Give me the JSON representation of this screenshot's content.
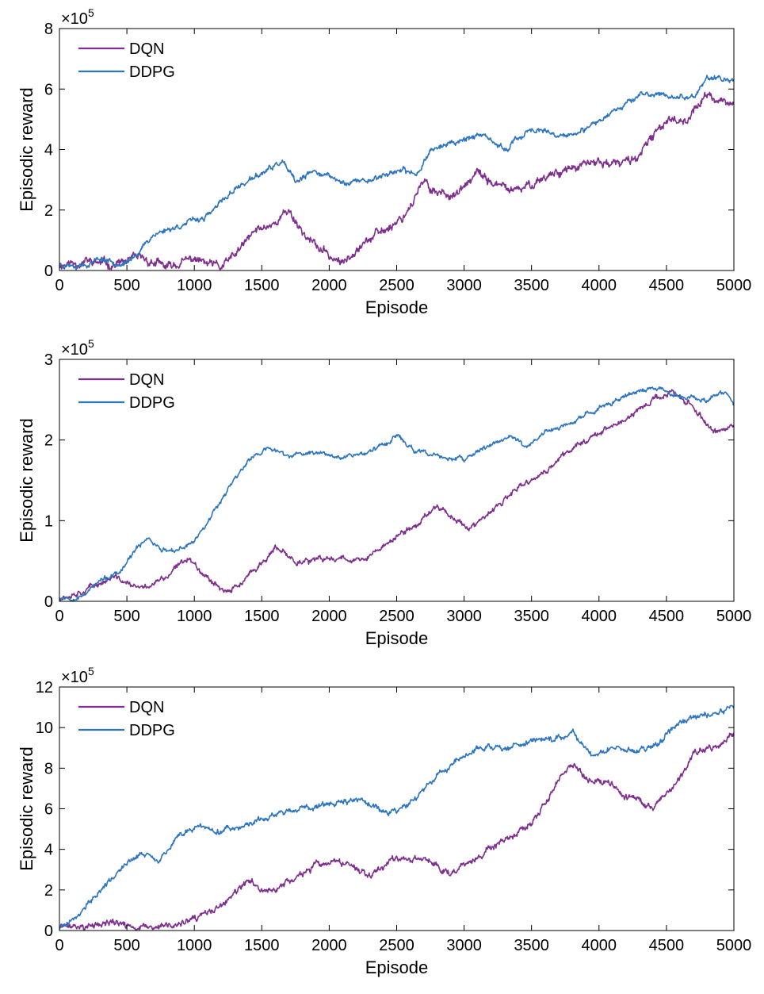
{
  "figure": {
    "colors": {
      "dqn": "#7E2F8E",
      "ddpg": "#2E75C0",
      "axis": "#000000",
      "background": "#ffffff"
    }
  },
  "chart_data": [
    {
      "type": "line",
      "xlabel": "Episode",
      "ylabel": "Episodic reward",
      "multiplier": {
        "base": "×10",
        "exponent": "5"
      },
      "xlim": [
        0,
        5000
      ],
      "ylim": [
        0,
        8
      ],
      "xticks": [
        0,
        500,
        1000,
        1500,
        2000,
        2500,
        3000,
        3500,
        4000,
        4500,
        5000
      ],
      "yticks": [
        0,
        2,
        4,
        6,
        8
      ],
      "legend": {
        "position": "top-left",
        "entries": [
          "DQN",
          "DDPG"
        ]
      },
      "series": [
        {
          "name": "DQN",
          "color": "#7E2F8E",
          "seed": 11,
          "noise": 0.14,
          "x": [
            0,
            200,
            400,
            600,
            800,
            1000,
            1100,
            1200,
            1300,
            1450,
            1600,
            1700,
            1800,
            1900,
            2000,
            2100,
            2200,
            2400,
            2550,
            2700,
            2800,
            2950,
            3100,
            3250,
            3400,
            3550,
            3700,
            3850,
            4000,
            4150,
            4300,
            4500,
            4650,
            4800,
            4900,
            5000
          ],
          "y": [
            0.2,
            0.3,
            0.2,
            0.4,
            0.1,
            0.4,
            0.2,
            0.1,
            0.5,
            1.3,
            1.6,
            2.0,
            1.3,
            0.8,
            0.5,
            0.2,
            0.8,
            1.3,
            1.8,
            2.9,
            2.6,
            2.5,
            3.2,
            2.8,
            2.6,
            3.0,
            3.3,
            3.4,
            3.6,
            3.5,
            3.8,
            5.0,
            5.0,
            5.8,
            5.6,
            5.5
          ]
        },
        {
          "name": "DDPG",
          "color": "#2E75C0",
          "seed": 23,
          "noise": 0.09,
          "x": [
            0,
            200,
            300,
            500,
            700,
            900,
            1100,
            1300,
            1500,
            1650,
            1750,
            1900,
            2100,
            2300,
            2500,
            2650,
            2750,
            2900,
            3100,
            3300,
            3500,
            3700,
            3900,
            4100,
            4300,
            4500,
            4700,
            4800,
            4900,
            5000
          ],
          "y": [
            0.2,
            0.2,
            0.4,
            0.2,
            1.2,
            1.5,
            1.8,
            2.7,
            3.2,
            3.6,
            2.9,
            3.3,
            2.9,
            3.0,
            3.3,
            3.2,
            4.0,
            4.2,
            4.5,
            4.0,
            4.7,
            4.4,
            4.6,
            5.3,
            5.8,
            5.8,
            5.7,
            6.4,
            6.3,
            6.3
          ]
        }
      ]
    },
    {
      "type": "line",
      "xlabel": "Episode",
      "ylabel": "Episodic reward",
      "multiplier": {
        "base": "×10",
        "exponent": "5"
      },
      "xlim": [
        0,
        5000
      ],
      "ylim": [
        0,
        3
      ],
      "xticks": [
        0,
        500,
        1000,
        1500,
        2000,
        2500,
        3000,
        3500,
        4000,
        4500,
        5000
      ],
      "yticks": [
        0,
        1,
        2,
        3
      ],
      "legend": {
        "position": "top-left",
        "entries": [
          "DQN",
          "DDPG"
        ]
      },
      "series": [
        {
          "name": "DQN",
          "color": "#7E2F8E",
          "seed": 37,
          "noise": 0.035,
          "x": [
            0,
            200,
            400,
            600,
            800,
            950,
            1100,
            1250,
            1400,
            1600,
            1750,
            1900,
            2100,
            2250,
            2500,
            2650,
            2800,
            2950,
            3050,
            3200,
            3400,
            3600,
            3800,
            4000,
            4200,
            4400,
            4550,
            4700,
            4850,
            5000
          ],
          "y": [
            0.05,
            0.15,
            0.3,
            0.15,
            0.3,
            0.55,
            0.3,
            0.1,
            0.3,
            0.65,
            0.5,
            0.5,
            0.55,
            0.5,
            0.8,
            0.95,
            1.2,
            1.0,
            0.9,
            1.1,
            1.4,
            1.6,
            1.9,
            2.1,
            2.25,
            2.5,
            2.6,
            2.4,
            2.1,
            2.15
          ]
        },
        {
          "name": "DDPG",
          "color": "#2E75C0",
          "seed": 53,
          "noise": 0.028,
          "x": [
            0,
            150,
            300,
            450,
            550,
            650,
            750,
            850,
            1000,
            1100,
            1250,
            1400,
            1550,
            1700,
            1900,
            2100,
            2300,
            2500,
            2650,
            2800,
            3000,
            3200,
            3350,
            3450,
            3600,
            3800,
            4000,
            4200,
            4400,
            4600,
            4800,
            4950,
            5000
          ],
          "y": [
            0.05,
            0.05,
            0.25,
            0.35,
            0.6,
            0.8,
            0.65,
            0.6,
            0.75,
            1.0,
            1.4,
            1.75,
            1.9,
            1.8,
            1.85,
            1.8,
            1.85,
            2.05,
            1.85,
            1.8,
            1.75,
            1.95,
            2.05,
            1.9,
            2.1,
            2.2,
            2.4,
            2.55,
            2.65,
            2.55,
            2.5,
            2.6,
            2.45
          ]
        }
      ]
    },
    {
      "type": "line",
      "xlabel": "Episode",
      "ylabel": "Episodic reward",
      "multiplier": {
        "base": "×10",
        "exponent": "5"
      },
      "xlim": [
        0,
        5000
      ],
      "ylim": [
        0,
        12
      ],
      "xticks": [
        0,
        500,
        1000,
        1500,
        2000,
        2500,
        3000,
        3500,
        4000,
        4500,
        5000
      ],
      "yticks": [
        0,
        2,
        4,
        6,
        8,
        10,
        12
      ],
      "legend": {
        "position": "top-left",
        "entries": [
          "DQN",
          "DDPG"
        ]
      },
      "series": [
        {
          "name": "DQN",
          "color": "#7E2F8E",
          "seed": 71,
          "noise": 0.16,
          "x": [
            0,
            200,
            400,
            600,
            800,
            1000,
            1200,
            1400,
            1550,
            1700,
            1900,
            2100,
            2300,
            2500,
            2700,
            2900,
            3100,
            3300,
            3500,
            3650,
            3800,
            3900,
            4050,
            4200,
            4400,
            4550,
            4700,
            4850,
            5000
          ],
          "y": [
            0.2,
            0.2,
            0.4,
            0.1,
            0.2,
            0.5,
            1.2,
            2.4,
            1.9,
            2.4,
            3.2,
            3.3,
            2.8,
            3.6,
            3.5,
            2.9,
            3.6,
            4.4,
            5.2,
            6.8,
            8.3,
            7.5,
            7.3,
            6.7,
            6.0,
            7.0,
            8.7,
            9.0,
            9.6
          ]
        },
        {
          "name": "DDPG",
          "color": "#2E75C0",
          "seed": 89,
          "noise": 0.14,
          "x": [
            0,
            150,
            300,
            450,
            600,
            750,
            900,
            1050,
            1200,
            1400,
            1600,
            1800,
            2000,
            2200,
            2350,
            2500,
            2700,
            2900,
            3100,
            3300,
            3500,
            3650,
            3800,
            3950,
            4100,
            4300,
            4450,
            4600,
            4800,
            5000
          ],
          "y": [
            0.1,
            0.8,
            2.0,
            3.0,
            3.8,
            3.5,
            4.8,
            5.1,
            4.9,
            5.2,
            5.7,
            6.0,
            6.3,
            6.4,
            6.0,
            5.8,
            7.0,
            8.2,
            9.0,
            8.9,
            9.3,
            9.4,
            9.8,
            8.6,
            9.0,
            8.8,
            9.2,
            10.3,
            10.6,
            11.0
          ]
        }
      ]
    }
  ]
}
